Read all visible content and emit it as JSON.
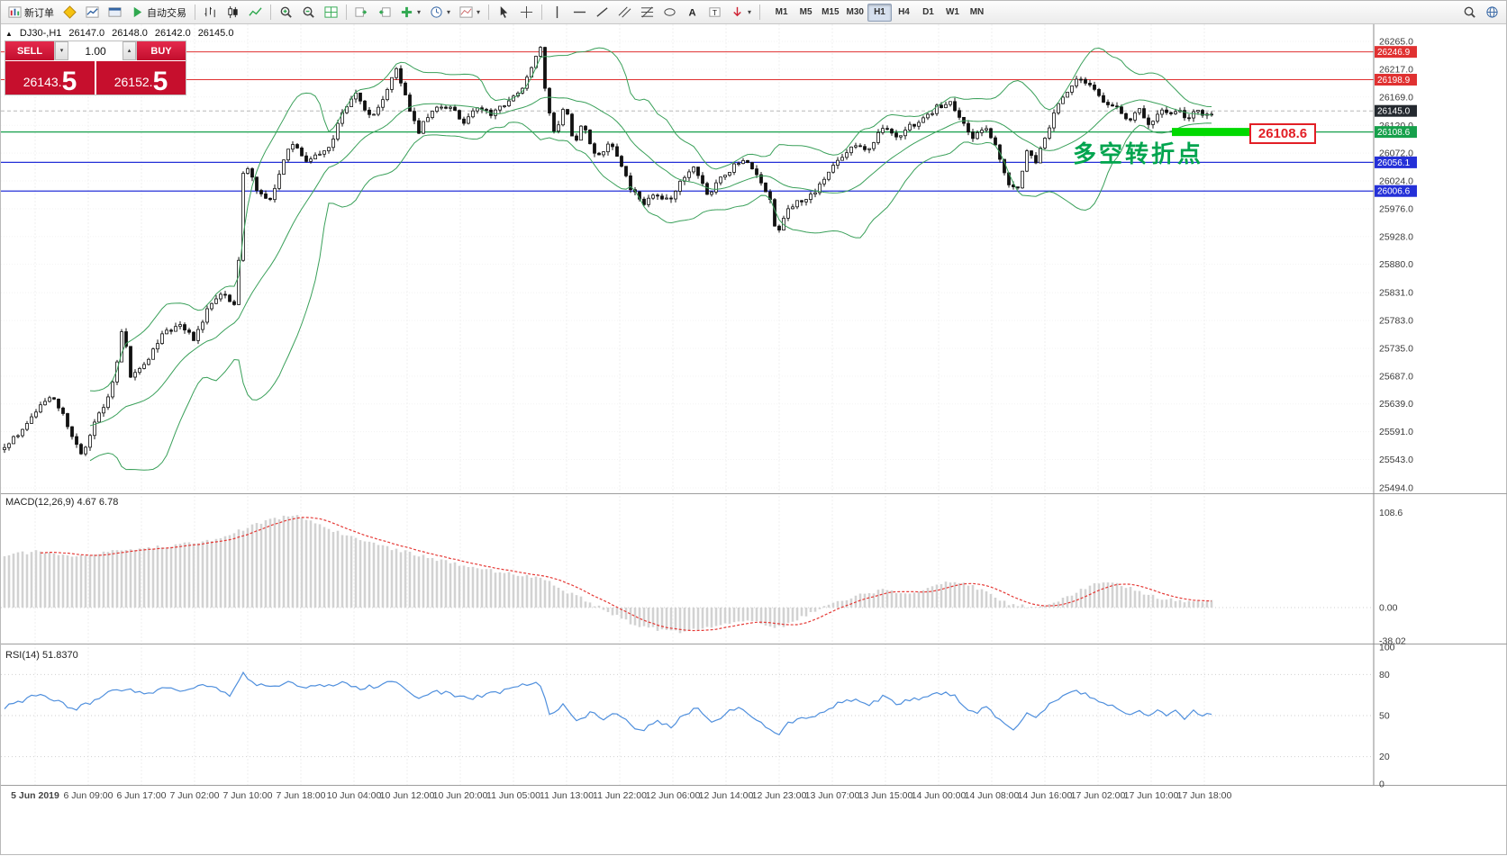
{
  "toolbar": {
    "new_order_label": "新订单",
    "autotrading_label": "自动交易",
    "timeframes": [
      "M1",
      "M5",
      "M15",
      "M30",
      "H1",
      "H4",
      "D1",
      "W1",
      "MN"
    ],
    "active_timeframe": "H1"
  },
  "symbol_bar": {
    "symbol": "DJ30-,H1",
    "open": "26147.0",
    "high": "26148.0",
    "low": "26142.0",
    "close": "26145.0"
  },
  "one_click": {
    "sell_label": "SELL",
    "buy_label": "BUY",
    "volume": "1.00",
    "sell_price_base": "26143.",
    "sell_price_big": "5",
    "buy_price_base": "26152.",
    "buy_price_big": "5"
  },
  "annotation": {
    "text": "多空转折点",
    "color": "#00a44e"
  },
  "callout": {
    "text": "26108.6"
  },
  "price_axis": {
    "ticks": [
      26265.0,
      26217.0,
      26169.0,
      26120.0,
      26072.0,
      26024.0,
      25976.0,
      25928.0,
      25880.0,
      25831.0,
      25783.0,
      25735.0,
      25687.0,
      25639.0,
      25591.0,
      25543.0,
      25494.0
    ],
    "badges": [
      {
        "value": "26246.9",
        "price": 26246.9,
        "color": "#e03131"
      },
      {
        "value": "26198.9",
        "price": 26198.9,
        "color": "#e03131"
      },
      {
        "value": "26145.0",
        "price": 26145.0,
        "color": "#24292f"
      },
      {
        "value": "26108.6",
        "price": 26108.6,
        "color": "#16a04b"
      },
      {
        "value": "26056.1",
        "price": 26056.1,
        "color": "#2430d8"
      },
      {
        "value": "26006.6",
        "price": 26006.6,
        "color": "#2430d8"
      }
    ]
  },
  "levels": [
    {
      "price": 26246.9,
      "color": "#e03131",
      "width": 1
    },
    {
      "price": 26198.9,
      "color": "#e03131",
      "width": 1
    },
    {
      "price": 26108.6,
      "color": "#16a04b",
      "width": 1.2
    },
    {
      "price": 26056.1,
      "color": "#2430d8",
      "width": 1.2
    },
    {
      "price": 26006.6,
      "color": "#2430d8",
      "width": 1.2
    }
  ],
  "current_price": 26145.0,
  "macd": {
    "label": "MACD(12,26,9) 4.67 6.78",
    "axis": [
      "108.6",
      "0.00",
      "-38.02"
    ]
  },
  "rsi": {
    "label": "RSI(14) 51.8370",
    "axis": [
      "100",
      "80",
      "50",
      "20",
      "0"
    ]
  },
  "time_axis": [
    "5 Jun 2019",
    "6 Jun 09:00",
    "6 Jun 17:00",
    "7 Jun 02:00",
    "7 Jun 10:00",
    "7 Jun 18:00",
    "10 Jun 04:00",
    "10 Jun 12:00",
    "10 Jun 20:00",
    "11 Jun 05:00",
    "11 Jun 13:00",
    "11 Jun 22:00",
    "12 Jun 06:00",
    "12 Jun 14:00",
    "12 Jun 23:00",
    "13 Jun 07:00",
    "13 Jun 15:00",
    "14 Jun 00:00",
    "14 Jun 08:00",
    "14 Jun 16:00",
    "17 Jun 02:00",
    "17 Jun 10:00",
    "17 Jun 18:00"
  ],
  "chart_data": {
    "type": "candlestick",
    "symbol": "DJ30-",
    "timeframe": "H1",
    "price_range": [
      25494.0,
      26265.0
    ],
    "price_path_anchors": [
      [
        0,
        25560
      ],
      [
        28,
        25600
      ],
      [
        45,
        25640
      ],
      [
        60,
        25650
      ],
      [
        75,
        25598
      ],
      [
        90,
        25545
      ],
      [
        105,
        25615
      ],
      [
        120,
        25650
      ],
      [
        130,
        25720
      ],
      [
        136,
        25780
      ],
      [
        143,
        25685
      ],
      [
        158,
        25700
      ],
      [
        178,
        25755
      ],
      [
        198,
        25780
      ],
      [
        215,
        25748
      ],
      [
        232,
        25812
      ],
      [
        248,
        25828
      ],
      [
        258,
        25800
      ],
      [
        263,
        25858
      ],
      [
        270,
        26065
      ],
      [
        283,
        26010
      ],
      [
        298,
        25988
      ],
      [
        310,
        26038
      ],
      [
        322,
        26095
      ],
      [
        336,
        26058
      ],
      [
        352,
        26068
      ],
      [
        366,
        26082
      ],
      [
        380,
        26148
      ],
      [
        394,
        26178
      ],
      [
        410,
        26132
      ],
      [
        424,
        26160
      ],
      [
        438,
        26218
      ],
      [
        452,
        26155
      ],
      [
        464,
        26108
      ],
      [
        478,
        26148
      ],
      [
        498,
        26150
      ],
      [
        514,
        26128
      ],
      [
        530,
        26148
      ],
      [
        546,
        26140
      ],
      [
        562,
        26158
      ],
      [
        578,
        26185
      ],
      [
        592,
        26232
      ],
      [
        599,
        26252
      ],
      [
        607,
        26148
      ],
      [
        616,
        26100
      ],
      [
        626,
        26158
      ],
      [
        636,
        26082
      ],
      [
        646,
        26128
      ],
      [
        656,
        26080
      ],
      [
        666,
        26062
      ],
      [
        676,
        26090
      ],
      [
        686,
        26058
      ],
      [
        700,
        26010
      ],
      [
        714,
        25986
      ],
      [
        728,
        26000
      ],
      [
        744,
        25990
      ],
      [
        756,
        26030
      ],
      [
        770,
        26048
      ],
      [
        784,
        26000
      ],
      [
        800,
        26030
      ],
      [
        814,
        26050
      ],
      [
        828,
        26058
      ],
      [
        842,
        26028
      ],
      [
        854,
        25988
      ],
      [
        861,
        25932
      ],
      [
        874,
        25980
      ],
      [
        888,
        25990
      ],
      [
        903,
        26000
      ],
      [
        918,
        26040
      ],
      [
        933,
        26062
      ],
      [
        948,
        26088
      ],
      [
        963,
        26078
      ],
      [
        978,
        26118
      ],
      [
        993,
        26098
      ],
      [
        1008,
        26118
      ],
      [
        1023,
        26130
      ],
      [
        1038,
        26150
      ],
      [
        1053,
        26160
      ],
      [
        1064,
        26138
      ],
      [
        1078,
        26100
      ],
      [
        1093,
        26120
      ],
      [
        1108,
        26068
      ],
      [
        1119,
        26018
      ],
      [
        1129,
        26010
      ],
      [
        1139,
        26078
      ],
      [
        1149,
        26058
      ],
      [
        1160,
        26100
      ],
      [
        1171,
        26148
      ],
      [
        1184,
        26180
      ],
      [
        1196,
        26202
      ],
      [
        1210,
        26188
      ],
      [
        1224,
        26160
      ],
      [
        1238,
        26150
      ],
      [
        1252,
        26130
      ],
      [
        1264,
        26150
      ],
      [
        1275,
        26118
      ],
      [
        1286,
        26148
      ],
      [
        1296,
        26138
      ],
      [
        1306,
        26150
      ],
      [
        1316,
        26128
      ],
      [
        1326,
        26150
      ],
      [
        1336,
        26138
      ],
      [
        1346,
        26145
      ]
    ],
    "macd_anchors": [
      [
        0,
        60
      ],
      [
        40,
        64
      ],
      [
        80,
        58
      ],
      [
        120,
        64
      ],
      [
        160,
        68
      ],
      [
        200,
        72
      ],
      [
        240,
        78
      ],
      [
        270,
        90
      ],
      [
        300,
        102
      ],
      [
        330,
        105
      ],
      [
        360,
        92
      ],
      [
        400,
        76
      ],
      [
        440,
        66
      ],
      [
        480,
        56
      ],
      [
        520,
        46
      ],
      [
        560,
        40
      ],
      [
        600,
        34
      ],
      [
        620,
        22
      ],
      [
        650,
        8
      ],
      [
        680,
        -8
      ],
      [
        700,
        -18
      ],
      [
        720,
        -24
      ],
      [
        760,
        -28
      ],
      [
        800,
        -20
      ],
      [
        830,
        -14
      ],
      [
        860,
        -24
      ],
      [
        880,
        -16
      ],
      [
        900,
        -6
      ],
      [
        920,
        4
      ],
      [
        950,
        14
      ],
      [
        980,
        20
      ],
      [
        1010,
        16
      ],
      [
        1040,
        26
      ],
      [
        1060,
        30
      ],
      [
        1080,
        24
      ],
      [
        1100,
        14
      ],
      [
        1120,
        4
      ],
      [
        1150,
        0
      ],
      [
        1170,
        6
      ],
      [
        1190,
        16
      ],
      [
        1210,
        26
      ],
      [
        1230,
        30
      ],
      [
        1250,
        24
      ],
      [
        1270,
        16
      ],
      [
        1290,
        10
      ],
      [
        1310,
        8
      ],
      [
        1330,
        7
      ],
      [
        1346,
        6.8
      ]
    ],
    "rsi_anchors": [
      [
        0,
        55
      ],
      [
        20,
        60
      ],
      [
        40,
        65
      ],
      [
        60,
        62
      ],
      [
        80,
        54
      ],
      [
        100,
        60
      ],
      [
        120,
        68
      ],
      [
        140,
        70
      ],
      [
        160,
        66
      ],
      [
        180,
        70
      ],
      [
        200,
        68
      ],
      [
        220,
        72
      ],
      [
        240,
        70
      ],
      [
        255,
        64
      ],
      [
        268,
        82
      ],
      [
        280,
        74
      ],
      [
        300,
        70
      ],
      [
        320,
        74
      ],
      [
        340,
        70
      ],
      [
        360,
        72
      ],
      [
        380,
        74
      ],
      [
        400,
        70
      ],
      [
        420,
        72
      ],
      [
        440,
        76
      ],
      [
        460,
        62
      ],
      [
        480,
        68
      ],
      [
        500,
        66
      ],
      [
        520,
        62
      ],
      [
        540,
        66
      ],
      [
        560,
        68
      ],
      [
        580,
        72
      ],
      [
        598,
        75
      ],
      [
        610,
        50
      ],
      [
        625,
        58
      ],
      [
        640,
        45
      ],
      [
        655,
        52
      ],
      [
        670,
        48
      ],
      [
        685,
        52
      ],
      [
        700,
        42
      ],
      [
        715,
        40
      ],
      [
        730,
        46
      ],
      [
        745,
        42
      ],
      [
        760,
        52
      ],
      [
        775,
        55
      ],
      [
        790,
        45
      ],
      [
        805,
        52
      ],
      [
        820,
        56
      ],
      [
        835,
        48
      ],
      [
        850,
        42
      ],
      [
        862,
        34
      ],
      [
        875,
        45
      ],
      [
        890,
        48
      ],
      [
        905,
        50
      ],
      [
        920,
        56
      ],
      [
        935,
        60
      ],
      [
        950,
        62
      ],
      [
        965,
        58
      ],
      [
        980,
        64
      ],
      [
        995,
        58
      ],
      [
        1010,
        62
      ],
      [
        1025,
        63
      ],
      [
        1040,
        66
      ],
      [
        1055,
        66
      ],
      [
        1065,
        60
      ],
      [
        1080,
        52
      ],
      [
        1095,
        56
      ],
      [
        1110,
        46
      ],
      [
        1120,
        40
      ],
      [
        1130,
        42
      ],
      [
        1140,
        52
      ],
      [
        1150,
        48
      ],
      [
        1160,
        56
      ],
      [
        1170,
        62
      ],
      [
        1185,
        66
      ],
      [
        1195,
        68
      ],
      [
        1210,
        64
      ],
      [
        1225,
        58
      ],
      [
        1240,
        56
      ],
      [
        1255,
        50
      ],
      [
        1265,
        55
      ],
      [
        1275,
        48
      ],
      [
        1285,
        54
      ],
      [
        1295,
        50
      ],
      [
        1305,
        54
      ],
      [
        1315,
        48
      ],
      [
        1325,
        54
      ],
      [
        1335,
        50
      ],
      [
        1346,
        51.8
      ]
    ],
    "indicators": [
      "Bollinger Bands",
      "MACD(12,26,9)",
      "RSI(14)"
    ]
  }
}
